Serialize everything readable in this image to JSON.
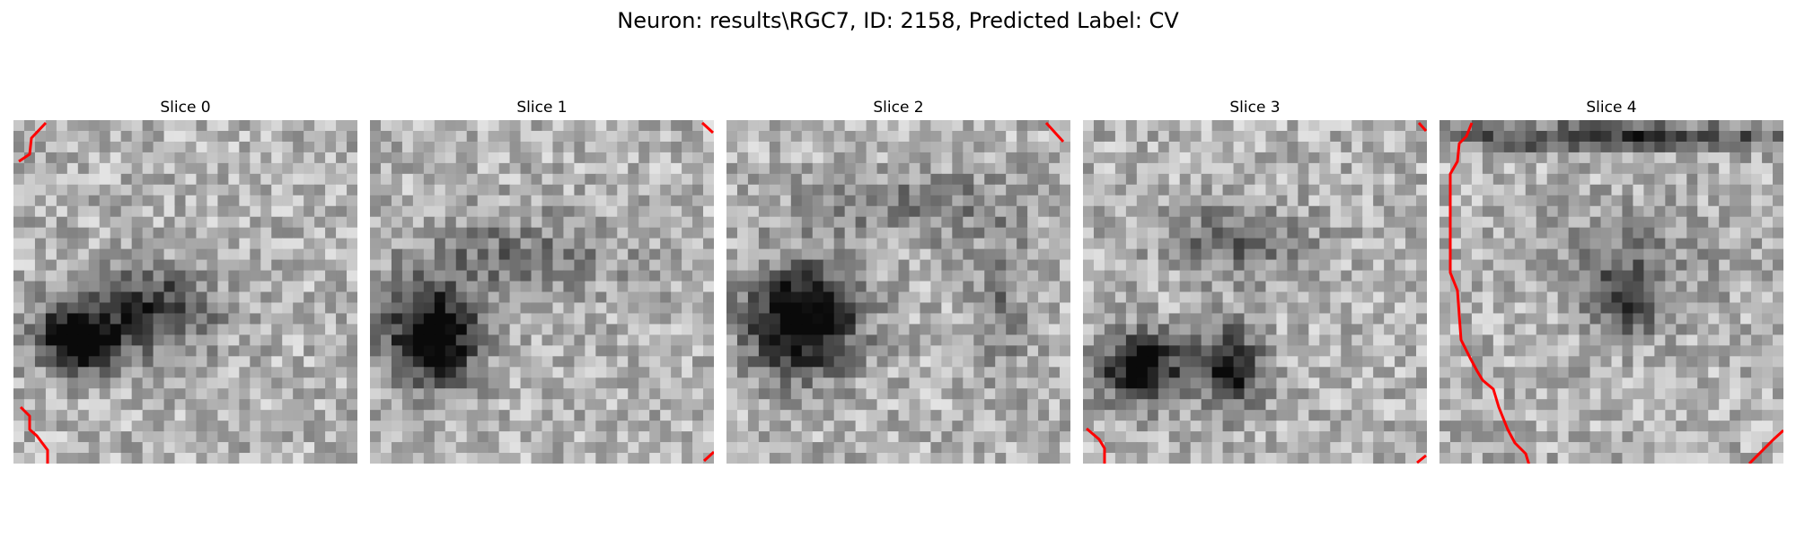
{
  "figure": {
    "suptitle": "Neuron: results\\RGC7, ID: 2158, Predicted Label: CV",
    "colormap": "gray",
    "contour_color": "#ff0000"
  },
  "panels": [
    {
      "title": "Slice 0",
      "blobs": [
        [
          0.4,
          0.55,
          0.18,
          0.12,
          0.5
        ],
        [
          0.2,
          0.65,
          0.12,
          0.09,
          0.6
        ],
        [
          0.15,
          0.6,
          0.1,
          0.1,
          0.3
        ]
      ]
    },
    {
      "title": "Slice 1",
      "blobs": [
        [
          0.18,
          0.63,
          0.13,
          0.14,
          0.85
        ],
        [
          0.42,
          0.4,
          0.3,
          0.12,
          0.25
        ]
      ]
    },
    {
      "title": "Slice 2",
      "blobs": [
        [
          0.22,
          0.58,
          0.16,
          0.15,
          0.85
        ],
        [
          0.55,
          0.25,
          0.35,
          0.1,
          0.22
        ],
        [
          0.8,
          0.55,
          0.08,
          0.2,
          0.22
        ]
      ]
    },
    {
      "title": "Slice 3",
      "blobs": [
        [
          0.17,
          0.72,
          0.12,
          0.1,
          0.75
        ],
        [
          0.43,
          0.72,
          0.09,
          0.11,
          0.65
        ],
        [
          0.45,
          0.35,
          0.2,
          0.1,
          0.3
        ]
      ]
    },
    {
      "title": "Slice 4",
      "blobs": [
        [
          0.5,
          0.05,
          0.6,
          0.04,
          0.5
        ],
        [
          0.55,
          0.52,
          0.1,
          0.1,
          0.45
        ],
        [
          0.55,
          0.4,
          0.25,
          0.15,
          0.15
        ]
      ]
    }
  ]
}
